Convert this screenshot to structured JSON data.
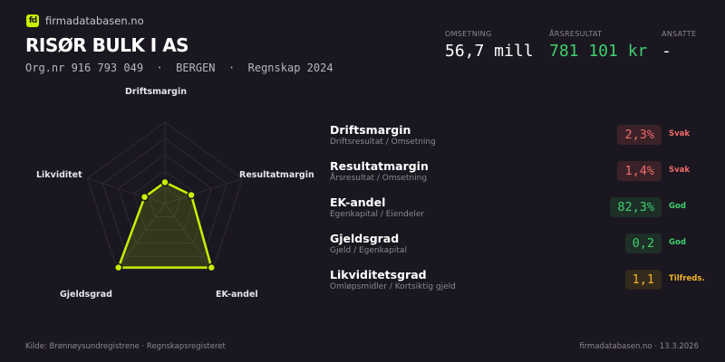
{
  "brand": {
    "name": "firmadatabasen.no",
    "logo": "fd"
  },
  "company": {
    "name": "RISØR BULK I AS",
    "subtitle": "Org.nr 916 793 049  ·  BERGEN  ·  Regnskap 2024"
  },
  "kpis": [
    {
      "label": "OMSETNING",
      "value": "56,7 mill",
      "color": "#ffffff"
    },
    {
      "label": "ÅRSRESULTAT",
      "value": "781 101 kr",
      "color": "#3ecf6e"
    },
    {
      "label": "ANSATTE",
      "value": "-",
      "color": "#ffffff"
    }
  ],
  "radar": {
    "axes": [
      "Driftsmargin",
      "Resultatmargin",
      "EK-andel",
      "Gjeldsgrad",
      "Likviditet"
    ],
    "values": [
      0.27,
      0.35,
      1.0,
      1.0,
      0.27
    ],
    "rings": 5,
    "color": "#c8f000"
  },
  "metrics": [
    {
      "name": "Driftsmargin",
      "desc": "Driftsresultat / Omsetning",
      "value": "2,3%",
      "status": "Svak",
      "color": "#f06a6a",
      "bg": "#3a2228"
    },
    {
      "name": "Resultatmargin",
      "desc": "Årsresultat / Omsetning",
      "value": "1,4%",
      "status": "Svak",
      "color": "#f06a6a",
      "bg": "#3a2228"
    },
    {
      "name": "EK-andel",
      "desc": "Egenkapital / Eiendeler",
      "value": "82,3%",
      "status": "God",
      "color": "#3ecf6e",
      "bg": "#1d2f27"
    },
    {
      "name": "Gjeldsgrad",
      "desc": "Gjeld / Egenkapital",
      "value": "0,2",
      "status": "God",
      "color": "#3ecf6e",
      "bg": "#1d2f27"
    },
    {
      "name": "Likviditetsgrad",
      "desc": "Omløpsmidler / Kortsiktig gjeld",
      "value": "1,1",
      "status": "Tilfreds.",
      "color": "#f0b429",
      "bg": "#33291d"
    }
  ],
  "footer": {
    "source": "Kilde: Brønnøysundregistrene · Regnskapsregisteret",
    "right": "firmadatabasen.no · 13.3.2026"
  }
}
